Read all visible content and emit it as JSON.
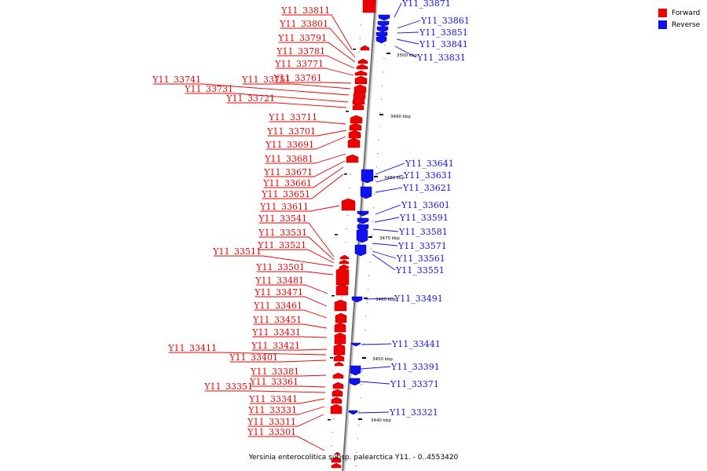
{
  "legend": {
    "forward_label": "Forward",
    "reverse_label": "Reverse",
    "forward_color": "#ee0000",
    "reverse_color": "#1111ee"
  },
  "caption": "Yersinia enterocolitica subsp. palearctica Y11. - 0..4553420",
  "ticks": [
    {
      "label": "3500 kbp"
    },
    {
      "label": "3490 kbp"
    },
    {
      "label": "3480 kbp"
    },
    {
      "label": "3470 kbp"
    },
    {
      "label": "3460 kbp"
    },
    {
      "label": "3450 kbp"
    },
    {
      "label": "3440 kbp"
    }
  ],
  "forward_genes": [
    "Y11_33811",
    "Y11_33801",
    "Y11_33791",
    "Y11_33781",
    "Y11_33771",
    "Y11_33761",
    "Y11_33751",
    "Y11_33741",
    "Y11_33731",
    "Y11_33721",
    "Y11_33711",
    "Y11_33701",
    "Y11_33691",
    "Y11_33681",
    "Y11_33671",
    "Y11_33661",
    "Y11_33651",
    "Y11_33611",
    "Y11_33541",
    "Y11_33531",
    "Y11_33521",
    "Y11_33511",
    "Y11_33501",
    "Y11_33481",
    "Y11_33471",
    "Y11_33461",
    "Y11_33451",
    "Y11_33431",
    "Y11_33421",
    "Y11_33411",
    "Y11_33401",
    "Y11_33381",
    "Y11_33361",
    "Y11_33351",
    "Y11_33341",
    "Y11_33331",
    "Y11_33311",
    "Y11_33301"
  ],
  "reverse_genes": [
    "Y11_33871",
    "Y11_33861",
    "Y11_33851",
    "Y11_33841",
    "Y11_33831",
    "Y11_33641",
    "Y11_33631",
    "Y11_33621",
    "Y11_33601",
    "Y11_33591",
    "Y11_33581",
    "Y11_33571",
    "Y11_33561",
    "Y11_33551",
    "Y11_33491",
    "Y11_33441",
    "Y11_33391",
    "Y11_33371",
    "Y11_33321"
  ]
}
